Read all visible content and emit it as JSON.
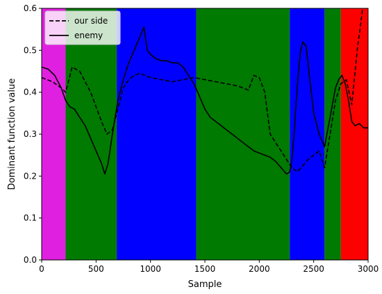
{
  "chart_data": {
    "type": "line",
    "xlabel": "Sample",
    "ylabel": "Dominant function value",
    "xlim": [
      0,
      3000
    ],
    "ylim": [
      0,
      0.6
    ],
    "xticks": [
      0,
      500,
      1000,
      1500,
      2000,
      2500,
      3000
    ],
    "yticks": [
      0.0,
      0.1,
      0.2,
      0.3,
      0.4,
      0.5,
      0.6
    ],
    "xtick_labels": [
      "0",
      "500",
      "1000",
      "1500",
      "2000",
      "2500",
      "3000"
    ],
    "ytick_labels": [
      "0.0",
      "0.1",
      "0.2",
      "0.3",
      "0.4",
      "0.5",
      "0.6"
    ],
    "grid": false,
    "legend_position": "top-left",
    "regions": [
      {
        "x0": 0,
        "x1": 220,
        "color": "#e020e0"
      },
      {
        "x0": 220,
        "x1": 690,
        "color": "#007a00"
      },
      {
        "x0": 690,
        "x1": 1420,
        "color": "#0000ff"
      },
      {
        "x0": 1420,
        "x1": 2280,
        "color": "#007a00"
      },
      {
        "x0": 2280,
        "x1": 2600,
        "color": "#0000ff"
      },
      {
        "x0": 2600,
        "x1": 2750,
        "color": "#007a00"
      },
      {
        "x0": 2750,
        "x1": 3000,
        "color": "#ff0000"
      }
    ],
    "series": [
      {
        "name": "our side",
        "style": "dashed",
        "color": "#000000",
        "x": [
          0,
          100,
          180,
          220,
          250,
          280,
          350,
          450,
          550,
          600,
          650,
          700,
          750,
          800,
          850,
          900,
          950,
          1000,
          1100,
          1200,
          1300,
          1400,
          1500,
          1600,
          1700,
          1800,
          1850,
          1900,
          1950,
          2000,
          2050,
          2100,
          2150,
          2200,
          2250,
          2300,
          2350,
          2400,
          2450,
          2500,
          2550,
          2600,
          2650,
          2700,
          2750,
          2800,
          2850,
          2900,
          2950
        ],
        "y": [
          0.435,
          0.425,
          0.41,
          0.4,
          0.43,
          0.46,
          0.45,
          0.4,
          0.33,
          0.3,
          0.31,
          0.36,
          0.41,
          0.43,
          0.44,
          0.445,
          0.44,
          0.435,
          0.43,
          0.425,
          0.43,
          0.435,
          0.43,
          0.425,
          0.42,
          0.415,
          0.41,
          0.405,
          0.44,
          0.435,
          0.4,
          0.3,
          0.28,
          0.26,
          0.24,
          0.22,
          0.21,
          0.225,
          0.24,
          0.25,
          0.26,
          0.22,
          0.3,
          0.38,
          0.42,
          0.43,
          0.37,
          0.5,
          0.6
        ]
      },
      {
        "name": "enemy",
        "style": "solid",
        "color": "#000000",
        "x": [
          0,
          60,
          120,
          180,
          220,
          260,
          300,
          350,
          400,
          450,
          500,
          550,
          580,
          610,
          650,
          700,
          750,
          800,
          850,
          900,
          940,
          970,
          1000,
          1050,
          1100,
          1150,
          1200,
          1250,
          1300,
          1350,
          1400,
          1450,
          1500,
          1550,
          1600,
          1650,
          1700,
          1750,
          1800,
          1850,
          1900,
          1950,
          2000,
          2050,
          2100,
          2150,
          2200,
          2250,
          2280,
          2300,
          2320,
          2340,
          2360,
          2380,
          2400,
          2430,
          2460,
          2500,
          2550,
          2600,
          2650,
          2700,
          2730,
          2760,
          2790,
          2820,
          2850,
          2880,
          2920,
          2960,
          3000
        ],
        "y": [
          0.46,
          0.455,
          0.44,
          0.41,
          0.38,
          0.365,
          0.36,
          0.34,
          0.32,
          0.29,
          0.26,
          0.23,
          0.205,
          0.23,
          0.3,
          0.38,
          0.43,
          0.47,
          0.5,
          0.53,
          0.555,
          0.5,
          0.49,
          0.48,
          0.475,
          0.475,
          0.47,
          0.47,
          0.46,
          0.44,
          0.42,
          0.39,
          0.36,
          0.34,
          0.33,
          0.32,
          0.31,
          0.3,
          0.29,
          0.28,
          0.27,
          0.26,
          0.255,
          0.25,
          0.245,
          0.235,
          0.22,
          0.205,
          0.21,
          0.24,
          0.3,
          0.38,
          0.45,
          0.5,
          0.52,
          0.51,
          0.44,
          0.35,
          0.3,
          0.27,
          0.34,
          0.41,
          0.43,
          0.44,
          0.42,
          0.38,
          0.33,
          0.32,
          0.325,
          0.315,
          0.315
        ]
      }
    ]
  }
}
